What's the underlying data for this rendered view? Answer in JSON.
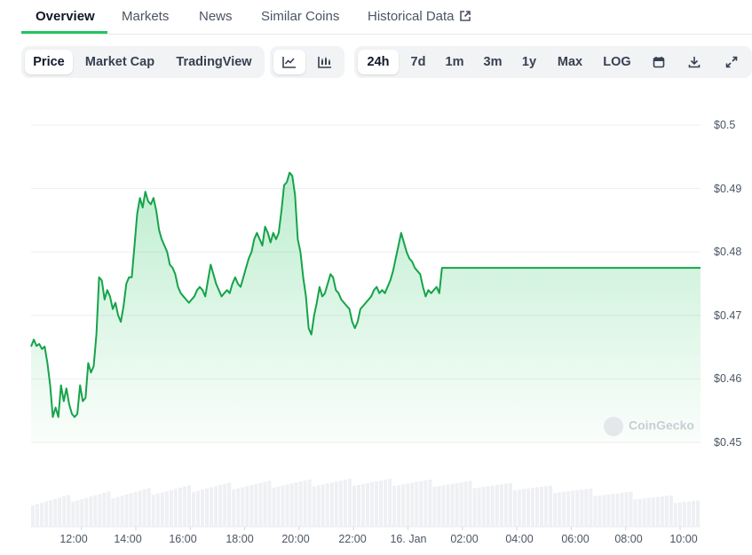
{
  "nav": {
    "tabs": [
      "Overview",
      "Markets",
      "News",
      "Similar Coins",
      "Historical Data"
    ],
    "active": "Overview"
  },
  "toolbar": {
    "data_tabs": [
      "Price",
      "Market Cap",
      "TradingView"
    ],
    "active_data_tab": "Price",
    "chart_style_icons": [
      "line-chart-icon",
      "candlestick-chart-icon"
    ],
    "active_style": "line-chart-icon",
    "ranges": [
      "24h",
      "7d",
      "1m",
      "3m",
      "1y",
      "Max",
      "LOG"
    ],
    "active_range": "24h",
    "action_icons": [
      "calendar-icon",
      "download-icon",
      "expand-icon"
    ]
  },
  "watermark": "CoinGecko",
  "colors": {
    "accent": "#22c55e",
    "line": "#16a34a",
    "volume": "#e5e7eb"
  },
  "chart_data": {
    "type": "area",
    "title": "",
    "xlabel": "",
    "ylabel": "",
    "ylim": [
      0.45,
      0.5
    ],
    "yticks": [
      "$0.5",
      "$0.49",
      "$0.48",
      "$0.47",
      "$0.46",
      "$0.45"
    ],
    "ytick_values": [
      0.5,
      0.49,
      0.48,
      0.47,
      0.46,
      0.45
    ],
    "xticks": [
      "12:00",
      "14:00",
      "16:00",
      "18:00",
      "20:00",
      "22:00",
      "16. Jan",
      "02:00",
      "04:00",
      "06:00",
      "08:00",
      "10:00"
    ],
    "xtick_hours": [
      12,
      14,
      16,
      18,
      20,
      22,
      24,
      26,
      28,
      30,
      32,
      34
    ],
    "x_range_hours": [
      10.15,
      34.75
    ],
    "grid": true,
    "series": [
      {
        "values": [
          [
            10.15,
            0.4651
          ],
          [
            10.25,
            0.4662
          ],
          [
            10.35,
            0.4652
          ],
          [
            10.45,
            0.4655
          ],
          [
            10.55,
            0.4647
          ],
          [
            10.65,
            0.4651
          ],
          [
            10.75,
            0.4625
          ],
          [
            10.85,
            0.459
          ],
          [
            10.95,
            0.454
          ],
          [
            11.05,
            0.4555
          ],
          [
            11.15,
            0.454
          ],
          [
            11.25,
            0.459
          ],
          [
            11.35,
            0.4565
          ],
          [
            11.45,
            0.4585
          ],
          [
            11.55,
            0.456
          ],
          [
            11.65,
            0.4545
          ],
          [
            11.75,
            0.454
          ],
          [
            11.85,
            0.4545
          ],
          [
            11.95,
            0.459
          ],
          [
            12.05,
            0.4565
          ],
          [
            12.15,
            0.457
          ],
          [
            12.25,
            0.4625
          ],
          [
            12.35,
            0.461
          ],
          [
            12.45,
            0.462
          ],
          [
            12.55,
            0.467
          ],
          [
            12.65,
            0.476
          ],
          [
            12.75,
            0.4755
          ],
          [
            12.85,
            0.4725
          ],
          [
            12.95,
            0.474
          ],
          [
            13.05,
            0.473
          ],
          [
            13.15,
            0.471
          ],
          [
            13.25,
            0.472
          ],
          [
            13.35,
            0.47
          ],
          [
            13.45,
            0.469
          ],
          [
            13.55,
            0.4715
          ],
          [
            13.65,
            0.475
          ],
          [
            13.75,
            0.476
          ],
          [
            13.85,
            0.476
          ],
          [
            13.95,
            0.481
          ],
          [
            14.05,
            0.486
          ],
          [
            14.15,
            0.4885
          ],
          [
            14.25,
            0.487
          ],
          [
            14.35,
            0.4895
          ],
          [
            14.45,
            0.488
          ],
          [
            14.55,
            0.4875
          ],
          [
            14.65,
            0.4885
          ],
          [
            14.75,
            0.4865
          ],
          [
            14.85,
            0.4835
          ],
          [
            14.95,
            0.482
          ],
          [
            15.05,
            0.481
          ],
          [
            15.15,
            0.48
          ],
          [
            15.25,
            0.478
          ],
          [
            15.35,
            0.4775
          ],
          [
            15.45,
            0.4765
          ],
          [
            15.55,
            0.4745
          ],
          [
            15.65,
            0.4735
          ],
          [
            15.75,
            0.473
          ],
          [
            15.85,
            0.4725
          ],
          [
            15.95,
            0.472
          ],
          [
            16.05,
            0.4725
          ],
          [
            16.15,
            0.473
          ],
          [
            16.25,
            0.474
          ],
          [
            16.35,
            0.4745
          ],
          [
            16.45,
            0.474
          ],
          [
            16.55,
            0.473
          ],
          [
            16.65,
            0.4755
          ],
          [
            16.75,
            0.478
          ],
          [
            16.85,
            0.4765
          ],
          [
            16.95,
            0.475
          ],
          [
            17.05,
            0.474
          ],
          [
            17.15,
            0.473
          ],
          [
            17.25,
            0.4735
          ],
          [
            17.35,
            0.474
          ],
          [
            17.45,
            0.4735
          ],
          [
            17.55,
            0.475
          ],
          [
            17.65,
            0.476
          ],
          [
            17.75,
            0.475
          ],
          [
            17.85,
            0.4745
          ],
          [
            17.95,
            0.476
          ],
          [
            18.05,
            0.4775
          ],
          [
            18.15,
            0.479
          ],
          [
            18.25,
            0.48
          ],
          [
            18.35,
            0.482
          ],
          [
            18.45,
            0.483
          ],
          [
            18.55,
            0.482
          ],
          [
            18.65,
            0.481
          ],
          [
            18.75,
            0.484
          ],
          [
            18.85,
            0.483
          ],
          [
            18.95,
            0.4815
          ],
          [
            19.05,
            0.483
          ],
          [
            19.15,
            0.482
          ],
          [
            19.25,
            0.483
          ],
          [
            19.35,
            0.4865
          ],
          [
            19.45,
            0.4905
          ],
          [
            19.55,
            0.491
          ],
          [
            19.65,
            0.4925
          ],
          [
            19.75,
            0.492
          ],
          [
            19.85,
            0.489
          ],
          [
            19.95,
            0.482
          ],
          [
            20.05,
            0.48
          ],
          [
            20.15,
            0.476
          ],
          [
            20.25,
            0.473
          ],
          [
            20.35,
            0.468
          ],
          [
            20.45,
            0.467
          ],
          [
            20.55,
            0.47
          ],
          [
            20.65,
            0.472
          ],
          [
            20.75,
            0.4745
          ],
          [
            20.85,
            0.473
          ],
          [
            20.95,
            0.4735
          ],
          [
            21.05,
            0.475
          ],
          [
            21.15,
            0.4765
          ],
          [
            21.25,
            0.476
          ],
          [
            21.35,
            0.474
          ],
          [
            21.45,
            0.4735
          ],
          [
            21.55,
            0.4725
          ],
          [
            21.65,
            0.472
          ],
          [
            21.75,
            0.4715
          ],
          [
            21.85,
            0.471
          ],
          [
            21.95,
            0.469
          ],
          [
            22.05,
            0.468
          ],
          [
            22.15,
            0.469
          ],
          [
            22.25,
            0.471
          ],
          [
            22.35,
            0.4715
          ],
          [
            22.45,
            0.472
          ],
          [
            22.55,
            0.4725
          ],
          [
            22.65,
            0.473
          ],
          [
            22.75,
            0.474
          ],
          [
            22.85,
            0.4745
          ],
          [
            22.95,
            0.4735
          ],
          [
            23.05,
            0.474
          ],
          [
            23.15,
            0.4735
          ],
          [
            23.25,
            0.4745
          ],
          [
            23.35,
            0.4755
          ],
          [
            23.45,
            0.477
          ],
          [
            23.55,
            0.479
          ],
          [
            23.65,
            0.481
          ],
          [
            23.75,
            0.483
          ],
          [
            23.85,
            0.4815
          ],
          [
            23.95,
            0.48
          ],
          [
            24.05,
            0.479
          ],
          [
            24.15,
            0.4785
          ],
          [
            24.25,
            0.4775
          ],
          [
            24.35,
            0.477
          ],
          [
            24.45,
            0.4765
          ],
          [
            24.55,
            0.4745
          ],
          [
            24.65,
            0.473
          ],
          [
            24.75,
            0.474
          ],
          [
            24.85,
            0.4735
          ],
          [
            24.95,
            0.474
          ],
          [
            25.05,
            0.4745
          ],
          [
            25.15,
            0.4735
          ],
          [
            25.25,
            0.4775
          ]
        ]
      }
    ]
  }
}
